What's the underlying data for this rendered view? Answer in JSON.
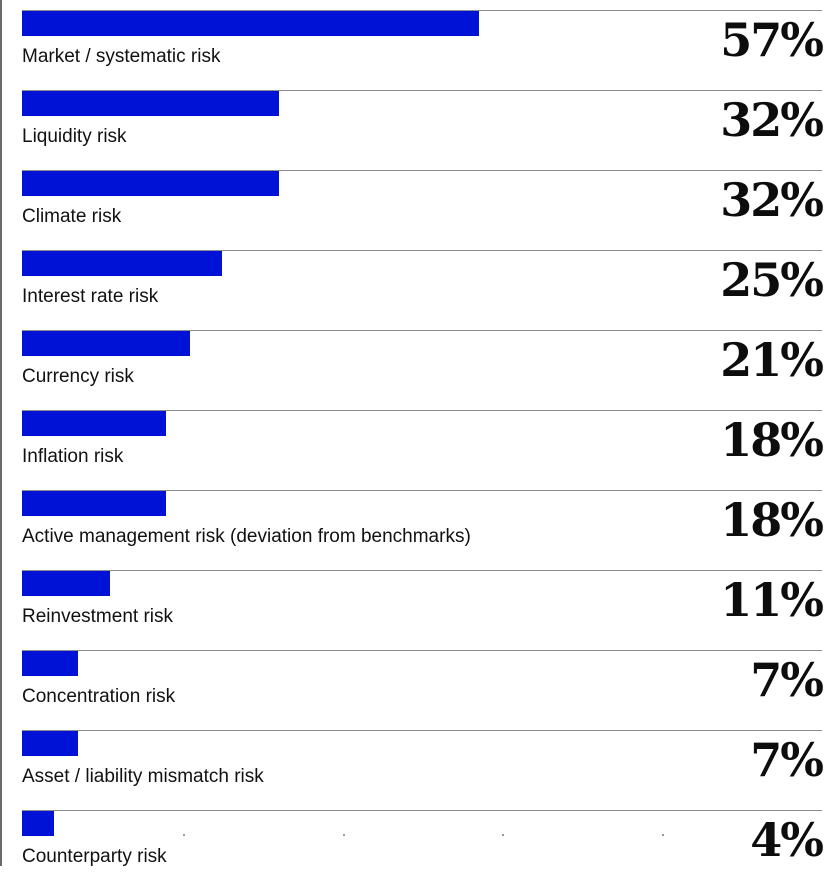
{
  "chart_data": {
    "type": "bar",
    "orientation": "horizontal",
    "categories": [
      "Market / systematic risk",
      "Liquidity risk",
      "Climate risk",
      "Interest rate risk",
      "Currency risk",
      "Inflation risk",
      "Active management risk (deviation from benchmarks)",
      "Reinvestment risk",
      "Concentration risk",
      "Asset / liability mismatch risk",
      "Counterparty risk"
    ],
    "values": [
      57,
      32,
      32,
      25,
      21,
      18,
      18,
      11,
      7,
      7,
      4
    ],
    "value_labels": [
      "57%",
      "32%",
      "32%",
      "25%",
      "21%",
      "18%",
      "18%",
      "11%",
      "7%",
      "7%",
      "4%"
    ],
    "unit": "%",
    "xlim": [
      0,
      100
    ],
    "grid": false,
    "bar_color": "#0012d6"
  }
}
